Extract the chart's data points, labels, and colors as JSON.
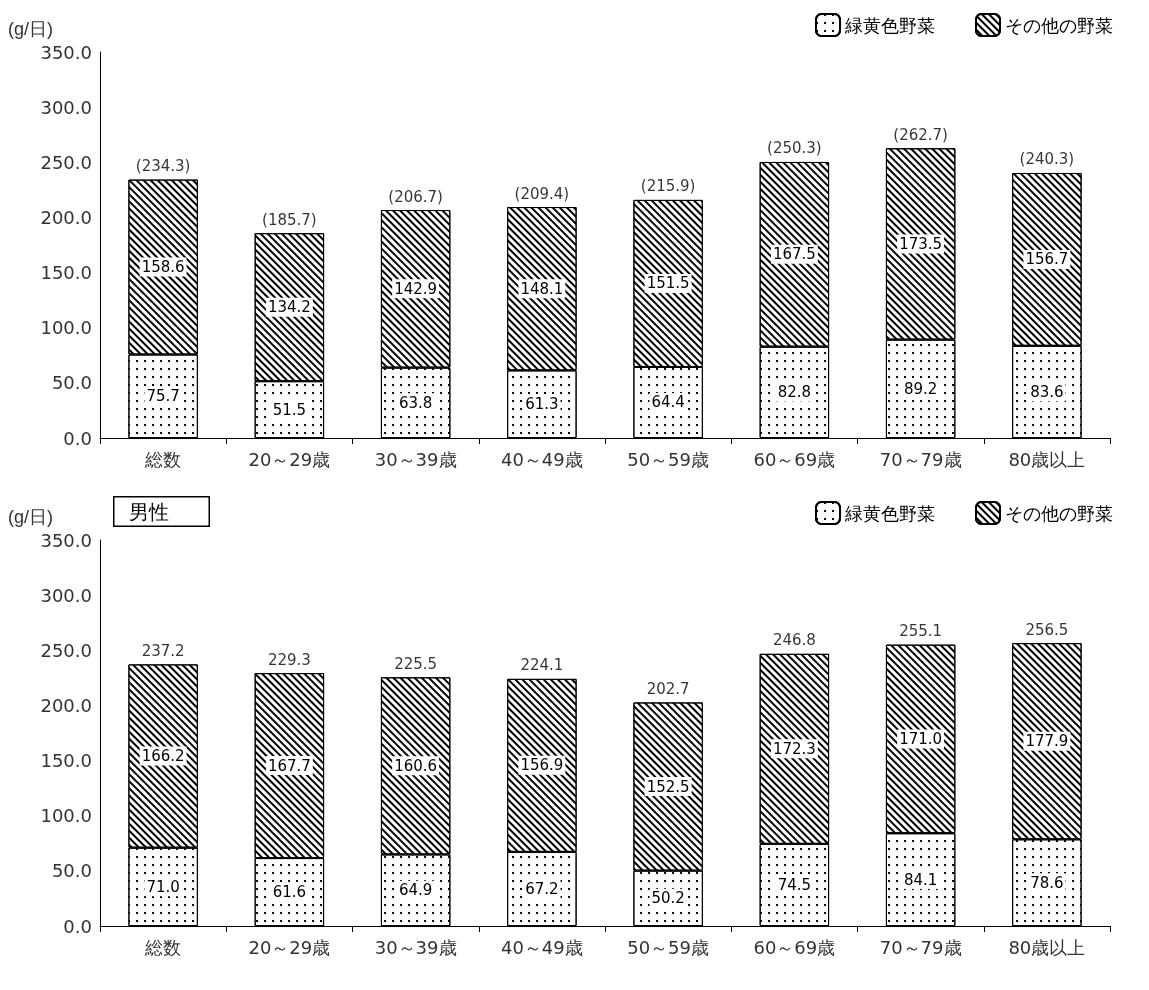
{
  "chart_data": [
    {
      "type": "bar",
      "stacked": true,
      "ylabel": "(g/日)",
      "categories": [
        "総数",
        "20～29歳",
        "30～39歳",
        "40～49歳",
        "50～59歳",
        "60～69歳",
        "70～79歳",
        "80歳以上"
      ],
      "series": [
        {
          "name": "緑黄色野菜",
          "color": "#ffffff",
          "values": [
            75.7,
            51.5,
            63.8,
            61.3,
            64.4,
            82.8,
            89.2,
            83.6
          ],
          "value_labels": [
            "75.7",
            "51.5",
            "63.8",
            "61.3",
            "64.4",
            "82.8",
            "89.2",
            "83.6"
          ]
        },
        {
          "name": "その他の野菜",
          "color": "#ffffff",
          "values": [
            158.6,
            134.2,
            142.9,
            148.1,
            151.5,
            167.5,
            173.5,
            156.7
          ],
          "value_labels": [
            "158.6",
            "134.2",
            "142.9",
            "148.1",
            "151.5",
            "167.5",
            "173.5",
            "156.7"
          ]
        }
      ],
      "totals": [
        "(234.3)",
        "(185.7)",
        "(206.7)",
        "(209.4)",
        "(215.9)",
        "(250.3)",
        "(262.7)",
        "(240.3)"
      ],
      "ylim": [
        0,
        350
      ],
      "yticks": [
        {
          "value": 0,
          "label": "0.0"
        },
        {
          "value": 50,
          "label": "50.0"
        },
        {
          "value": 100,
          "label": "100.0"
        },
        {
          "value": 150,
          "label": "150.0"
        },
        {
          "value": 200,
          "label": "200.0"
        },
        {
          "value": 250,
          "label": "250.0"
        },
        {
          "value": 300,
          "label": "300.0"
        },
        {
          "value": 350,
          "label": "350.0"
        }
      ],
      "grid": false,
      "legend": "top right"
    },
    {
      "type": "bar",
      "stacked": true,
      "ylabel": "(g/日)",
      "annotations": [
        "男性"
      ],
      "categories": [
        "総数",
        "20～29歳",
        "30～39歳",
        "40～49歳",
        "50～59歳",
        "60～69歳",
        "70～79歳",
        "80歳以上"
      ],
      "series": [
        {
          "name": "緑黄色野菜",
          "color": "#ffffff",
          "values": [
            71.0,
            61.6,
            64.9,
            67.2,
            50.2,
            74.5,
            84.1,
            78.6
          ],
          "value_labels": [
            "71.0",
            "61.6",
            "64.9",
            "67.2",
            "50.2",
            "74.5",
            "84.1",
            "78.6"
          ]
        },
        {
          "name": "その他の野菜",
          "color": "#ffffff",
          "values": [
            166.2,
            167.7,
            160.6,
            156.9,
            152.5,
            172.3,
            171.0,
            177.9
          ],
          "value_labels": [
            "166.2",
            "167.7",
            "160.6",
            "156.9",
            "152.5",
            "172.3",
            "171.0",
            "177.9"
          ]
        }
      ],
      "totals": [
        "237.2",
        "229.3",
        "225.5",
        "224.1",
        "202.7",
        "246.8",
        "255.1",
        "256.5"
      ],
      "ylim": [
        0,
        350
      ],
      "yticks": [
        {
          "value": 0,
          "label": "0.0"
        },
        {
          "value": 50,
          "label": "50.0"
        },
        {
          "value": 100,
          "label": "100.0"
        },
        {
          "value": 150,
          "label": "150.0"
        },
        {
          "value": 200,
          "label": "200.0"
        },
        {
          "value": 250,
          "label": "250.0"
        },
        {
          "value": 300,
          "label": "300.0"
        },
        {
          "value": 350,
          "label": "350.0"
        }
      ],
      "grid": false,
      "legend": "top right"
    }
  ]
}
